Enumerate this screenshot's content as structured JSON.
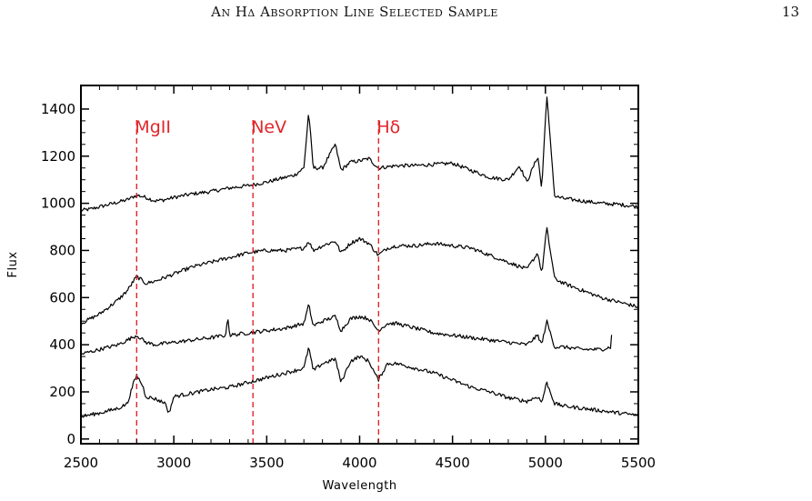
{
  "header": {
    "title": "An Hδ Absorption Line Selected Sample",
    "page_number": "13"
  },
  "chart_data": {
    "type": "line",
    "title": "",
    "xlabel": "Wavelength",
    "ylabel": "Flux",
    "xlim": [
      2500,
      5500
    ],
    "ylim": [
      -20,
      1500
    ],
    "xticks": [
      2500,
      3000,
      3500,
      4000,
      4500,
      5000,
      5500
    ],
    "yticks": [
      0,
      200,
      400,
      600,
      800,
      1000,
      1200,
      1400
    ],
    "grid": false,
    "legend": "none",
    "line_color": "#000000",
    "marker_color": "#e0262b",
    "reference_lines": [
      {
        "label": "MgII",
        "x": 2800
      },
      {
        "label": "NeV",
        "x": 3426
      },
      {
        "label": "Hδ",
        "x": 4102
      }
    ],
    "series": [
      {
        "x": [
          2500,
          2550,
          2600,
          2650,
          2700,
          2750,
          2800,
          2850,
          2900,
          2950,
          3000,
          3100,
          3200,
          3300,
          3400,
          3500,
          3600,
          3650,
          3700,
          3726,
          3750,
          3800,
          3869,
          3900,
          3950,
          4000,
          4050,
          4100,
          4150,
          4200,
          4300,
          4400,
          4500,
          4600,
          4700,
          4800,
          4861,
          4900,
          4959,
          4980,
          5007,
          5050,
          5100,
          5200,
          5300,
          5400,
          5500
        ],
        "y": [
          970,
          975,
          985,
          995,
          1005,
          1015,
          1035,
          1025,
          1010,
          1015,
          1025,
          1040,
          1050,
          1065,
          1075,
          1090,
          1110,
          1120,
          1150,
          1390,
          1150,
          1150,
          1250,
          1140,
          1175,
          1180,
          1190,
          1150,
          1155,
          1160,
          1160,
          1165,
          1170,
          1140,
          1110,
          1100,
          1160,
          1090,
          1200,
          1060,
          1460,
          1030,
          1020,
          1010,
          1000,
          995,
          985
        ]
      },
      {
        "x": [
          2500,
          2600,
          2700,
          2750,
          2800,
          2850,
          2900,
          3000,
          3100,
          3200,
          3300,
          3400,
          3500,
          3600,
          3650,
          3700,
          3726,
          3750,
          3800,
          3869,
          3900,
          3950,
          4000,
          4050,
          4100,
          4150,
          4200,
          4300,
          4400,
          4500,
          4600,
          4700,
          4800,
          4900,
          4959,
          4980,
          5007,
          5050,
          5100,
          5200,
          5300,
          5400,
          5500
        ],
        "y": [
          490,
          530,
          590,
          630,
          690,
          660,
          670,
          700,
          730,
          750,
          770,
          790,
          800,
          800,
          805,
          810,
          840,
          800,
          820,
          840,
          790,
          830,
          850,
          830,
          780,
          810,
          820,
          820,
          830,
          820,
          810,
          780,
          750,
          720,
          790,
          700,
          895,
          680,
          660,
          630,
          600,
          580,
          560
        ]
      },
      {
        "x": [
          2500,
          2600,
          2700,
          2750,
          2800,
          2850,
          2900,
          3000,
          3100,
          3200,
          3280,
          3290,
          3300,
          3400,
          3500,
          3600,
          3700,
          3726,
          3750,
          3800,
          3869,
          3900,
          3950,
          4000,
          4050,
          4100,
          4150,
          4200,
          4300,
          4400,
          4500,
          4600,
          4700,
          4800,
          4900,
          4959,
          4980,
          5007,
          5050,
          5100,
          5200,
          5300,
          5350,
          5360
        ],
        "y": [
          360,
          380,
          400,
          420,
          440,
          410,
          400,
          410,
          420,
          430,
          440,
          530,
          440,
          450,
          460,
          470,
          490,
          570,
          480,
          500,
          520,
          460,
          510,
          520,
          510,
          460,
          490,
          490,
          470,
          450,
          440,
          430,
          420,
          410,
          400,
          440,
          400,
          500,
          390,
          390,
          380,
          380,
          390,
          470
        ]
      },
      {
        "x": [
          2500,
          2600,
          2700,
          2750,
          2780,
          2800,
          2830,
          2850,
          2900,
          2960,
          2970,
          3000,
          3100,
          3200,
          3300,
          3400,
          3500,
          3600,
          3700,
          3726,
          3750,
          3800,
          3869,
          3900,
          3950,
          4000,
          4050,
          4100,
          4150,
          4200,
          4300,
          4400,
          4500,
          4600,
          4700,
          4800,
          4900,
          4959,
          4980,
          5007,
          5050,
          5100,
          5200,
          5300,
          5400,
          5500
        ],
        "y": [
          95,
          110,
          130,
          150,
          230,
          270,
          230,
          180,
          170,
          150,
          100,
          180,
          195,
          210,
          220,
          240,
          260,
          280,
          300,
          390,
          290,
          320,
          340,
          240,
          330,
          350,
          330,
          250,
          320,
          320,
          300,
          280,
          250,
          220,
          200,
          175,
          160,
          180,
          155,
          240,
          150,
          140,
          130,
          120,
          110,
          100
        ]
      }
    ]
  }
}
